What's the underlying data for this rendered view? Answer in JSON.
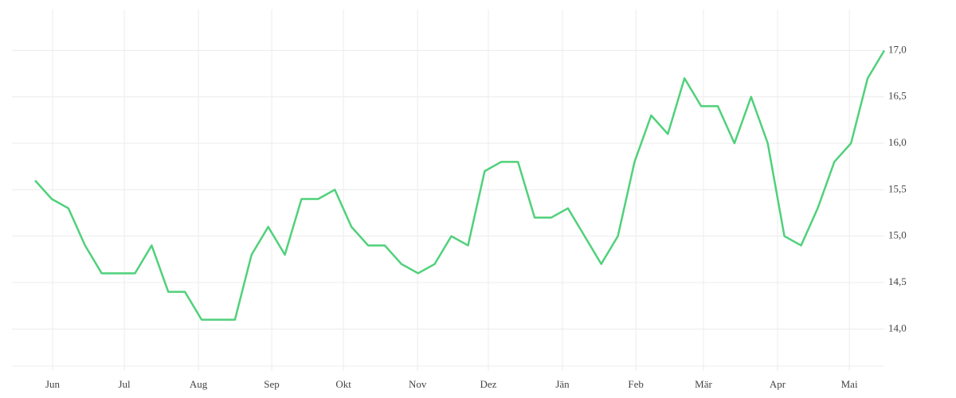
{
  "chart_data": {
    "type": "line",
    "x": [
      0,
      1,
      2,
      3,
      4,
      5,
      6,
      7,
      8,
      9,
      10,
      11,
      12,
      13,
      14,
      15,
      16,
      17,
      18,
      19,
      20,
      21,
      22,
      23,
      24,
      25,
      26,
      27,
      28,
      29,
      30,
      31,
      32,
      33,
      34,
      35,
      36,
      37,
      38,
      39,
      40,
      41,
      42,
      43,
      44,
      45,
      46,
      47,
      48,
      49,
      50,
      51
    ],
    "values": [
      15.6,
      15.4,
      15.3,
      14.9,
      14.6,
      14.6,
      14.6,
      14.9,
      14.4,
      14.4,
      14.1,
      14.1,
      14.1,
      14.8,
      15.1,
      14.8,
      15.4,
      15.4,
      15.5,
      15.1,
      14.9,
      14.9,
      14.7,
      14.6,
      14.7,
      15.0,
      14.9,
      15.7,
      15.8,
      15.8,
      15.2,
      15.2,
      15.3,
      15.0,
      14.7,
      15.0,
      15.8,
      16.3,
      16.1,
      16.7,
      16.4,
      16.4,
      16.0,
      16.5,
      16.0,
      15.0,
      14.9,
      15.3,
      15.8,
      16.0,
      16.7,
      17.0
    ],
    "color": "#4fd17a",
    "xlim": [
      -1.39,
      51
    ],
    "xticks": [
      {
        "value": 1.05,
        "label": "Jun"
      },
      {
        "value": 5.36,
        "label": "Jul"
      },
      {
        "value": 9.81,
        "label": "Aug"
      },
      {
        "value": 14.21,
        "label": "Sep"
      },
      {
        "value": 18.52,
        "label": "Okt"
      },
      {
        "value": 22.97,
        "label": "Nov"
      },
      {
        "value": 27.22,
        "label": "Dez"
      },
      {
        "value": 31.67,
        "label": "Jän"
      },
      {
        "value": 36.08,
        "label": "Feb"
      },
      {
        "value": 40.14,
        "label": "Mär"
      },
      {
        "value": 44.59,
        "label": "Apr"
      },
      {
        "value": 48.9,
        "label": "Mai"
      }
    ],
    "ylim": [
      13.6,
      17.44
    ],
    "yticks": [
      {
        "value": 14.0,
        "label": "14,0"
      },
      {
        "value": 14.5,
        "label": "14,5"
      },
      {
        "value": 15.0,
        "label": "15,0"
      },
      {
        "value": 15.5,
        "label": "15,5"
      },
      {
        "value": 16.0,
        "label": "16,0"
      },
      {
        "value": 16.5,
        "label": "16,5"
      },
      {
        "value": 17.0,
        "label": "17,0"
      }
    ],
    "grid": true
  }
}
